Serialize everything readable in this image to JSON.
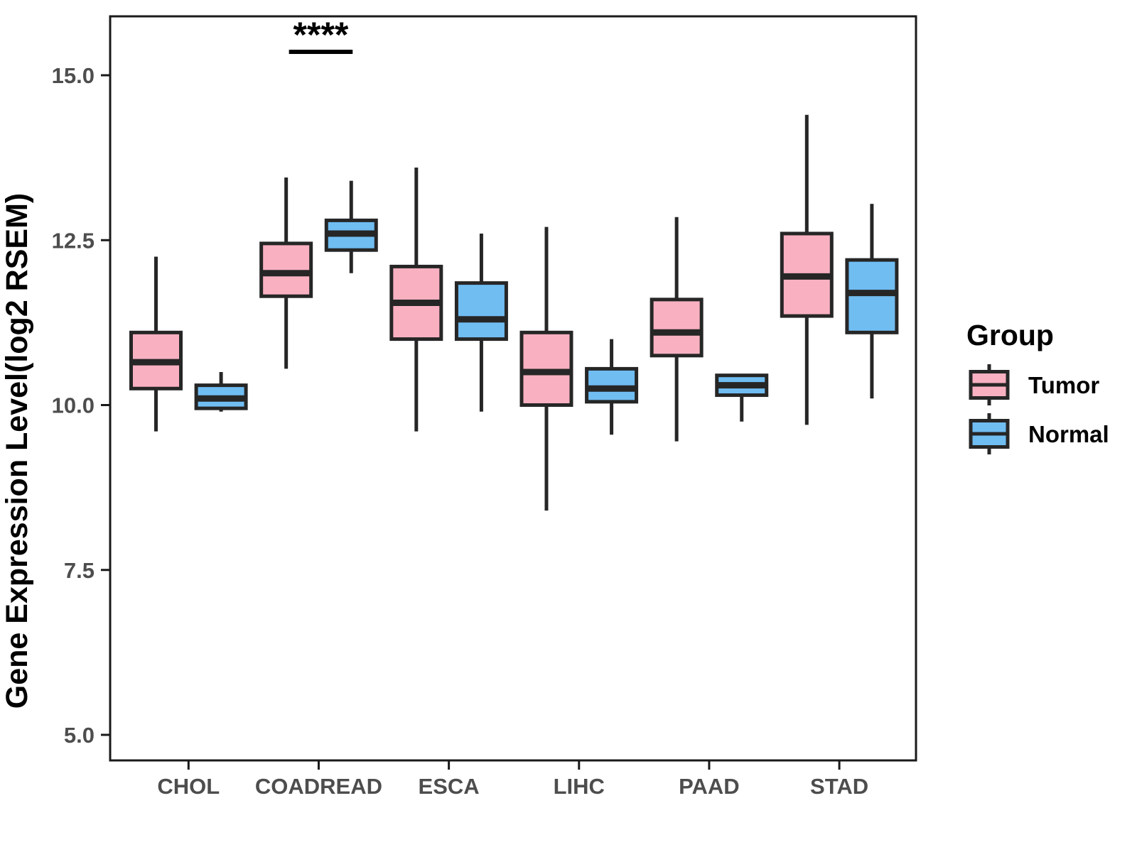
{
  "chart_data": {
    "type": "boxplot",
    "title": "",
    "xlabel": "",
    "ylabel": "Gene Expression Level(log2 RSEM)",
    "categories": [
      "CHOL",
      "COADREAD",
      "ESCA",
      "LIHC",
      "PAAD",
      "STAD"
    ],
    "y_ticks": [
      "5.0",
      "7.5",
      "10.0",
      "12.5",
      "15.0"
    ],
    "y_tick_values": [
      5.0,
      7.5,
      10.0,
      12.5,
      15.0
    ],
    "ylim": [
      4.6,
      15.9
    ],
    "grid": false,
    "legend_position": "right",
    "series": [
      {
        "name": "Tumor",
        "fill_color": "#F9B1C1",
        "stroke_color": "#262626",
        "boxes": [
          {
            "category": "CHOL",
            "whisker_low": 9.6,
            "q1": 10.25,
            "median": 10.65,
            "q3": 11.1,
            "whisker_high": 12.25
          },
          {
            "category": "COADREAD",
            "whisker_low": 10.55,
            "q1": 11.65,
            "median": 12.0,
            "q3": 12.45,
            "whisker_high": 13.45
          },
          {
            "category": "ESCA",
            "whisker_low": 9.6,
            "q1": 11.0,
            "median": 11.55,
            "q3": 12.1,
            "whisker_high": 13.6
          },
          {
            "category": "LIHC",
            "whisker_low": 8.4,
            "q1": 10.0,
            "median": 10.5,
            "q3": 11.1,
            "whisker_high": 12.7
          },
          {
            "category": "PAAD",
            "whisker_low": 9.45,
            "q1": 10.75,
            "median": 11.1,
            "q3": 11.6,
            "whisker_high": 12.85
          },
          {
            "category": "STAD",
            "whisker_low": 9.7,
            "q1": 11.35,
            "median": 11.95,
            "q3": 12.6,
            "whisker_high": 14.4
          }
        ]
      },
      {
        "name": "Normal",
        "fill_color": "#70BDF2",
        "stroke_color": "#262626",
        "boxes": [
          {
            "category": "CHOL",
            "whisker_low": 9.9,
            "q1": 9.95,
            "median": 10.1,
            "q3": 10.3,
            "whisker_high": 10.5
          },
          {
            "category": "COADREAD",
            "whisker_low": 12.0,
            "q1": 12.35,
            "median": 12.6,
            "q3": 12.8,
            "whisker_high": 13.4
          },
          {
            "category": "ESCA",
            "whisker_low": 9.9,
            "q1": 11.0,
            "median": 11.3,
            "q3": 11.85,
            "whisker_high": 12.6
          },
          {
            "category": "LIHC",
            "whisker_low": 9.55,
            "q1": 10.05,
            "median": 10.25,
            "q3": 10.55,
            "whisker_high": 11.0
          },
          {
            "category": "PAAD",
            "whisker_low": 9.75,
            "q1": 10.15,
            "median": 10.3,
            "q3": 10.45,
            "whisker_high": 10.45
          },
          {
            "category": "STAD",
            "whisker_low": 10.1,
            "q1": 11.1,
            "median": 11.7,
            "q3": 12.2,
            "whisker_high": 13.05
          }
        ]
      }
    ],
    "significance": [
      {
        "category": "COADREAD",
        "label": "****"
      }
    ]
  },
  "legend": {
    "title": "Group",
    "entries": [
      {
        "label": "Tumor",
        "color": "#F9B1C1"
      },
      {
        "label": "Normal",
        "color": "#70BDF2"
      }
    ]
  }
}
